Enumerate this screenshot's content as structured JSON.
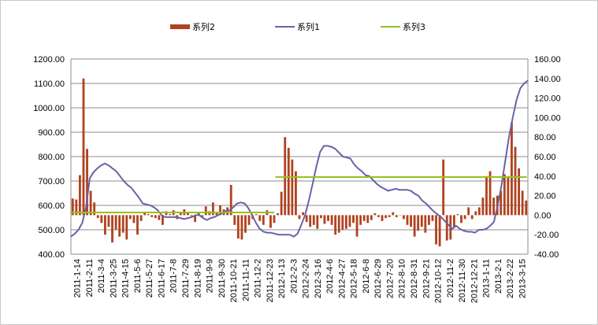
{
  "chart_data": {
    "type": "combo",
    "legend": {
      "position": "top",
      "entries": [
        {
          "name": "系列2",
          "type": "bar",
          "color": "#b0431f"
        },
        {
          "name": "系列1",
          "type": "line",
          "color": "#6a62a8"
        },
        {
          "name": "系列3",
          "type": "line",
          "color": "#96c11f"
        }
      ]
    },
    "y_left": {
      "ylim": [
        400,
        1200
      ],
      "ticks": [
        "400.00",
        "500.00",
        "600.00",
        "700.00",
        "800.00",
        "900.00",
        "1000.00",
        "1100.00",
        "1200.00"
      ]
    },
    "y_right": {
      "ylim": [
        -40,
        160
      ],
      "ticks": [
        "-40.00",
        "-20.00",
        "0.00",
        "20.00",
        "40.00",
        "60.00",
        "80.00",
        "100.00",
        "120.00",
        "140.00",
        "160.00"
      ]
    },
    "grid": true,
    "x_tick_labels": [
      "2011-1-14",
      "2011-2-11",
      "2011-3-4",
      "2011-3-25",
      "2011-4-15",
      "2011-5-6",
      "2011-5-27",
      "2011-6-17",
      "2011-7-8",
      "2011-7-29",
      "2011-8-19",
      "2011-9-9",
      "2011-9-30",
      "2011-10-21",
      "2011-11-11",
      "2011-12-2",
      "2011-12-23",
      "2012-1-13",
      "2012-2-3",
      "2012-2-24",
      "2012-3-16",
      "2012-4-6",
      "2012-4-27",
      "2012-5-18",
      "2012-6-8",
      "2012-6-29",
      "2012-7-20",
      "2012-8-10",
      "2012-8-31",
      "2012-9-21",
      "2012-10-12",
      "2012-11-2",
      "2012-11-30",
      "2012-12-21",
      "2013-1-11",
      "2013-2-1",
      "2013-2-22",
      "2013-3-15"
    ],
    "series": [
      {
        "name": "系列2",
        "type": "bar",
        "axis": "right",
        "values": [
          17,
          16,
          41,
          140,
          68,
          25,
          13,
          -3,
          -8,
          -20,
          -12,
          -28,
          -15,
          -22,
          -18,
          -25,
          -4,
          -8,
          -20,
          -6,
          2,
          1,
          -2,
          -3,
          -5,
          -10,
          4,
          1,
          5,
          -4,
          2,
          6,
          2,
          -1,
          -7,
          3,
          -2,
          9,
          4,
          13,
          2,
          10,
          6,
          8,
          31,
          -10,
          -24,
          -25,
          -18,
          -10,
          -4,
          1,
          -6,
          -10,
          5,
          -13,
          -8,
          2,
          24,
          80,
          69,
          57,
          45,
          -4,
          3,
          -7,
          -12,
          -10,
          -14,
          -3,
          -9,
          -6,
          -10,
          -20,
          -18,
          -15,
          -14,
          -12,
          -8,
          -22,
          -10,
          -6,
          -8,
          -5,
          2,
          -2,
          -6,
          -3,
          -2,
          3,
          -2,
          0,
          -4,
          -10,
          -12,
          -22,
          -16,
          -12,
          -18,
          -10,
          -6,
          -30,
          -32,
          57,
          -26,
          -25,
          -12,
          1,
          -8,
          -4,
          8,
          -4,
          4,
          8,
          18,
          40,
          45,
          18,
          20,
          25,
          42,
          40,
          95,
          70,
          48,
          25,
          15
        ]
      },
      {
        "name": "系列1",
        "axis": "right",
        "type": "line",
        "values": [
          -22,
          -19,
          -15,
          -8,
          8,
          38,
          44,
          48,
          51,
          53,
          51,
          48,
          45,
          40,
          35,
          31,
          28,
          23,
          18,
          12,
          11,
          10,
          8,
          5,
          0,
          -2,
          -2,
          -2,
          -2,
          -3,
          -4,
          -3,
          -2,
          0,
          0,
          -3,
          -5,
          -3,
          -2,
          0,
          2,
          4,
          5,
          8,
          12,
          13,
          12,
          7,
          0,
          -8,
          -14,
          -17,
          -18,
          -18,
          -19,
          -20,
          -20,
          -20,
          -20,
          -22,
          -19,
          -10,
          0,
          15,
          32,
          50,
          65,
          71,
          71,
          70,
          68,
          64,
          60,
          59,
          58,
          52,
          48,
          45,
          41,
          40,
          36,
          32,
          29,
          27,
          25,
          26,
          27,
          26,
          26,
          26,
          25,
          22,
          20,
          15,
          12,
          8,
          4,
          1,
          -2,
          -6,
          -10,
          -14,
          -11,
          -14,
          -16,
          -17,
          -17,
          -18,
          -15,
          -15,
          -14,
          -11,
          -7,
          10,
          30,
          55,
          80,
          100,
          118,
          130,
          135,
          138
        ]
      },
      {
        "name": "系列3",
        "axis": "left",
        "type": "line",
        "segments": [
          {
            "from": "2011-1-14",
            "to": "2011-12-23",
            "value": 571
          },
          {
            "from": "2012-1-13",
            "to": "2013-3-15",
            "value": 716
          }
        ]
      }
    ]
  }
}
